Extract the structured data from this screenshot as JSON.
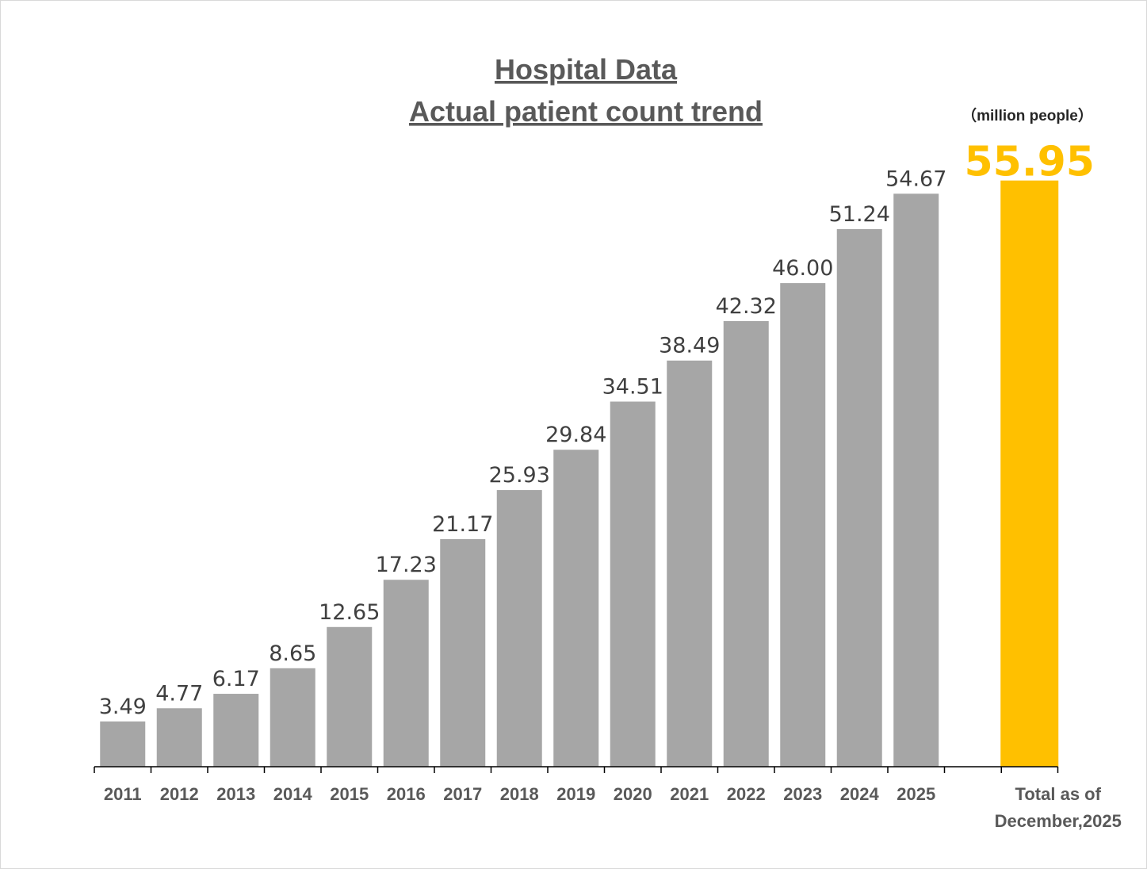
{
  "chart_data": {
    "type": "bar",
    "title": "Hospital Data",
    "subtitle": "Actual patient count trend",
    "unit_label": "（million people）",
    "xlabel": "",
    "ylabel": "",
    "ylim": [
      -0.9,
      60
    ],
    "grid": false,
    "legend": "none",
    "categories": [
      "2011",
      "2012",
      "2013",
      "2014",
      "2015",
      "2016",
      "2017",
      "2018",
      "2019",
      "2020",
      "2021",
      "2022",
      "2023",
      "2024",
      "2025"
    ],
    "values": [
      3.49,
      4.77,
      6.17,
      8.65,
      12.65,
      17.23,
      21.17,
      25.93,
      29.84,
      34.51,
      38.49,
      42.32,
      46.0,
      51.24,
      54.67
    ],
    "value_labels": [
      "3.49",
      "4.77",
      "6.17",
      "8.65",
      "12.65",
      "17.23",
      "21.17",
      "25.93",
      "29.84",
      "34.51",
      "38.49",
      "42.32",
      "46.00",
      "51.24",
      "54.67"
    ],
    "total": {
      "label_line1": "Total as of",
      "label_line2": "December,2025",
      "value": 55.95,
      "value_label": "55.95"
    },
    "colors": {
      "bars": "#a6a6a6",
      "total_bar": "#ffc000",
      "total_label": "#ffc000"
    }
  }
}
